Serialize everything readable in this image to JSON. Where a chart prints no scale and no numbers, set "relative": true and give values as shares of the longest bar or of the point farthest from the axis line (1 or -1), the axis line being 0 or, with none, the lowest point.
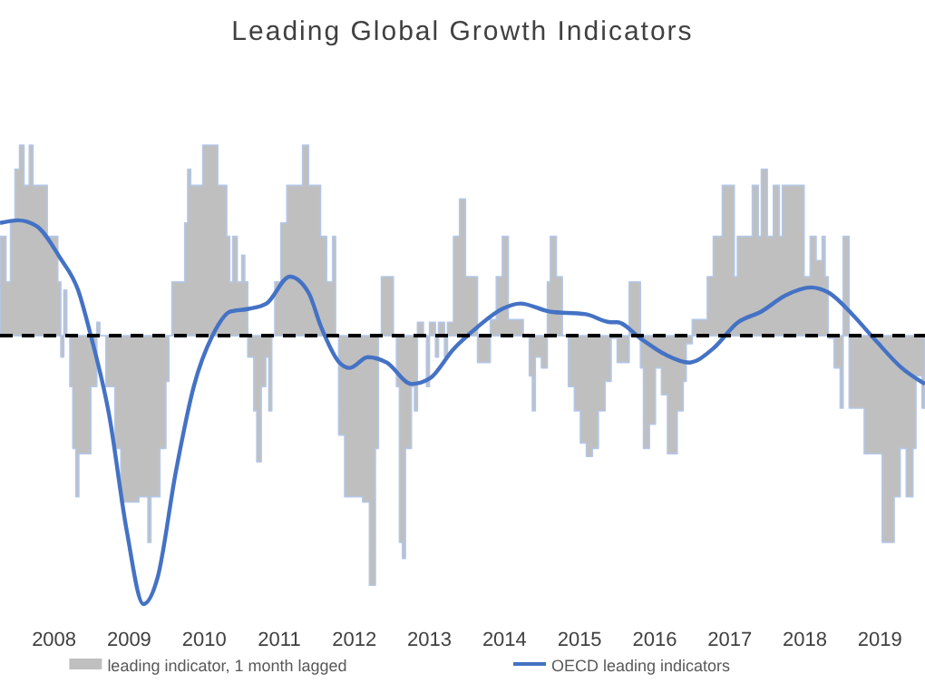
{
  "chart_data": {
    "type": "area",
    "title": "Leading Global Growth Indicators",
    "relative": true,
    "legend": "bottom",
    "xlim": [
      2007.78,
      2020.1
    ],
    "xticks": [
      {
        "value": 2008.5,
        "label": "2008"
      },
      {
        "value": 2009.5,
        "label": "2009"
      },
      {
        "value": 2010.5,
        "label": "2010"
      },
      {
        "value": 2011.5,
        "label": "2011"
      },
      {
        "value": 2012.5,
        "label": "2012"
      },
      {
        "value": 2013.5,
        "label": "2013"
      },
      {
        "value": 2014.5,
        "label": "2014"
      },
      {
        "value": 2015.5,
        "label": "2015"
      },
      {
        "value": 2016.5,
        "label": "2016"
      },
      {
        "value": 2017.5,
        "label": "2017"
      },
      {
        "value": 2018.5,
        "label": "2018"
      },
      {
        "value": 2019.5,
        "label": "2019"
      }
    ],
    "ref_lines": [
      {
        "axis": "y",
        "value": 0,
        "label": null,
        "color": "#000000",
        "line_style": "dashed"
      }
    ],
    "series": [
      {
        "name": "leading indicator, 1 month lagged",
        "color": "#bfbfbf",
        "x": [
          2007.78,
          2007.86,
          2007.92,
          2007.98,
          2008.04,
          2008.1,
          2008.17,
          2008.22,
          2008.34,
          2008.41,
          2008.5,
          2008.55,
          2008.59,
          2008.63,
          2008.67,
          2008.71,
          2008.75,
          2008.79,
          2008.83,
          2008.95,
          2008.99,
          2009.07,
          2009.11,
          2009.19,
          2009.31,
          2009.39,
          2009.51,
          2009.63,
          2009.75,
          2009.79,
          2009.87,
          2009.91,
          2009.99,
          2010.03,
          2010.07,
          2010.2,
          2010.24,
          2010.28,
          2010.32,
          2010.4,
          2010.48,
          2010.64,
          2010.68,
          2010.8,
          2010.84,
          2010.88,
          2010.94,
          2011.0,
          2011.04,
          2011.08,
          2011.16,
          2011.2,
          2011.26,
          2011.32,
          2011.36,
          2011.4,
          2011.44,
          2011.52,
          2011.6,
          2011.73,
          2011.81,
          2011.89,
          2011.97,
          2012.05,
          2012.13,
          2012.21,
          2012.25,
          2012.29,
          2012.37,
          2012.49,
          2012.61,
          2012.7,
          2012.78,
          2012.82,
          2012.86,
          2012.98,
          2013.02,
          2013.06,
          2013.1,
          2013.14,
          2013.18,
          2013.26,
          2013.3,
          2013.34,
          2013.42,
          2013.46,
          2013.5,
          2013.58,
          2013.62,
          2013.7,
          2013.74,
          2013.82,
          2013.9,
          2013.98,
          2014.06,
          2014.14,
          2014.22,
          2014.31,
          2014.39,
          2014.47,
          2014.55,
          2014.71,
          2014.75,
          2014.83,
          2014.87,
          2014.91,
          2014.99,
          2015.07,
          2015.11,
          2015.19,
          2015.27,
          2015.35,
          2015.43,
          2015.51,
          2015.59,
          2015.67,
          2015.75,
          2015.84,
          2015.92,
          2016.0,
          2016.08,
          2016.16,
          2016.24,
          2016.31,
          2016.35,
          2016.43,
          2016.51,
          2016.59,
          2016.67,
          2016.8,
          2016.88,
          2016.92,
          2017.0,
          2017.12,
          2017.2,
          2017.28,
          2017.4,
          2017.52,
          2017.56,
          2017.6,
          2017.72,
          2017.8,
          2017.88,
          2017.92,
          2018.0,
          2018.08,
          2018.16,
          2018.2,
          2018.41,
          2018.49,
          2018.57,
          2018.65,
          2018.73,
          2018.77,
          2018.81,
          2018.89,
          2018.97,
          2019.01,
          2019.09,
          2019.21,
          2019.29,
          2019.45,
          2019.53,
          2019.65,
          2019.69,
          2019.77,
          2019.85,
          2019.94,
          2019.98,
          2020.06,
          2020.1
        ],
        "values": [
          0.37,
          0.2,
          0.43,
          0.62,
          0.71,
          0.56,
          0.71,
          0.56,
          0.56,
          0.37,
          0.37,
          0.2,
          -0.08,
          0.17,
          0,
          -0.19,
          -0.42,
          -0.6,
          -0.44,
          -0.44,
          -0.19,
          0.05,
          0,
          -0.19,
          -0.42,
          -0.62,
          -0.62,
          -0.6,
          -0.77,
          -0.6,
          -0.6,
          -0.42,
          -0.17,
          0,
          0.2,
          0.2,
          0.42,
          0.62,
          0.56,
          0.56,
          0.71,
          0.71,
          0.56,
          0.37,
          0.2,
          0.37,
          0.2,
          0.3,
          0.2,
          -0.08,
          -0.28,
          -0.47,
          -0.19,
          -0.08,
          -0.28,
          0,
          0.2,
          0.42,
          0.56,
          0.56,
          0.71,
          0.56,
          0.56,
          0.37,
          0.2,
          0.37,
          0,
          -0.37,
          -0.6,
          -0.6,
          -0.62,
          -0.93,
          -0.42,
          0,
          0.22,
          0.22,
          0,
          -0.19,
          -0.77,
          -0.83,
          -0.42,
          -0.19,
          -0.28,
          0.05,
          0,
          -0.19,
          0.05,
          -0.08,
          0.05,
          -0.08,
          0.05,
          0.37,
          0.51,
          0.22,
          0.22,
          -0.1,
          -0.1,
          0.06,
          0.22,
          0.37,
          0.06,
          0.06,
          0,
          -0.15,
          -0.28,
          -0.08,
          -0.12,
          0.2,
          0.37,
          0.22,
          0,
          -0.19,
          -0.28,
          -0.4,
          -0.45,
          -0.42,
          -0.28,
          -0.17,
          -0.01,
          -0.1,
          -0.1,
          0.2,
          0.2,
          -0.12,
          -0.42,
          -0.33,
          -0.12,
          -0.22,
          -0.44,
          -0.28,
          -0.17,
          -0.03,
          0.06,
          0.06,
          0.22,
          0.37,
          0.56,
          0.56,
          0.22,
          0.37,
          0.37,
          0.56,
          0.37,
          0.62,
          0.37,
          0.56,
          0.37,
          0.56,
          0.56,
          0.22,
          0.37,
          0.28,
          0.37,
          0.22,
          -0.01,
          -0.12,
          -0.27,
          0.37,
          -0.27,
          -0.27,
          -0.44,
          -0.44,
          -0.77,
          -0.77,
          -0.6,
          -0.42,
          -0.6,
          -0.42,
          -0.15,
          -0.27,
          -0.15
        ]
      },
      {
        "name": "OECD leading indicators",
        "type": "line",
        "color": "#4472c4",
        "line_style": "solid",
        "marker": "none",
        "x": [
          2007.78,
          2008.02,
          2008.26,
          2008.58,
          2008.82,
          2008.99,
          2009.23,
          2009.47,
          2009.69,
          2009.88,
          2010.12,
          2010.36,
          2010.61,
          2010.85,
          2011.09,
          2011.33,
          2011.64,
          2011.89,
          2012.06,
          2012.3,
          2012.44,
          2012.68,
          2012.93,
          2013.26,
          2013.5,
          2013.82,
          2014.13,
          2014.47,
          2014.71,
          2015.1,
          2015.58,
          2015.92,
          2016.0,
          2016.31,
          2016.64,
          2016.96,
          2017.27,
          2017.61,
          2017.92,
          2018.24,
          2018.58,
          2018.82,
          2019.13,
          2019.45,
          2019.79,
          2020.1
        ],
        "values": [
          0.42,
          0.43,
          0.41,
          0.29,
          0.17,
          0,
          -0.29,
          -0.73,
          -1,
          -0.9,
          -0.51,
          -0.19,
          0,
          0.09,
          0.1,
          0.12,
          0.22,
          0.16,
          0.03,
          -0.1,
          -0.12,
          -0.08,
          -0.1,
          -0.18,
          -0.16,
          -0.05,
          0.03,
          0.1,
          0.12,
          0.09,
          0.08,
          0.05,
          0.05,
          -0.01,
          -0.07,
          -0.1,
          -0.05,
          0.05,
          0.09,
          0.15,
          0.18,
          0.16,
          0.08,
          -0.02,
          -0.12,
          -0.18
        ]
      }
    ]
  }
}
